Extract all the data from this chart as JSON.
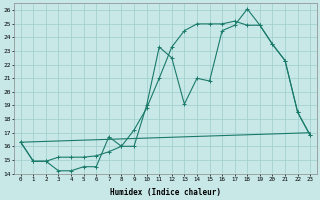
{
  "xlabel": "Humidex (Indice chaleur)",
  "background_color": "#c8e8e8",
  "line_color": "#1a7a6a",
  "xlim": [
    -0.5,
    23.5
  ],
  "ylim": [
    14,
    26.5
  ],
  "yticks": [
    14,
    15,
    16,
    17,
    18,
    19,
    20,
    21,
    22,
    23,
    24,
    25,
    26
  ],
  "xticks": [
    0,
    1,
    2,
    3,
    4,
    5,
    6,
    7,
    8,
    9,
    10,
    11,
    12,
    13,
    14,
    15,
    16,
    17,
    18,
    19,
    20,
    21,
    22,
    23
  ],
  "grid_color": "#9ecece",
  "line1_x": [
    0,
    1,
    2,
    3,
    4,
    5,
    6,
    7,
    8,
    9,
    10,
    11,
    12,
    13,
    14,
    15,
    16,
    17,
    18,
    19,
    20,
    21,
    22,
    23
  ],
  "line1_y": [
    16.3,
    14.9,
    14.9,
    14.2,
    14.2,
    14.5,
    14.5,
    16.7,
    16.0,
    16.0,
    19.0,
    23.3,
    22.5,
    19.1,
    21.0,
    20.8,
    24.5,
    24.9,
    26.1,
    24.9,
    23.5,
    22.3,
    18.5,
    16.8
  ],
  "line2_x": [
    0,
    1,
    2,
    3,
    4,
    5,
    6,
    7,
    8,
    9,
    10,
    11,
    12,
    13,
    14,
    15,
    16,
    17,
    18,
    19,
    20,
    21,
    22,
    23
  ],
  "line2_y": [
    16.3,
    14.9,
    14.9,
    15.2,
    15.2,
    15.2,
    15.3,
    15.6,
    16.0,
    17.2,
    18.8,
    21.0,
    23.3,
    24.5,
    25.0,
    25.0,
    25.0,
    25.2,
    24.9,
    24.9,
    23.5,
    22.3,
    18.5,
    16.8
  ],
  "line3_x": [
    0,
    23
  ],
  "line3_y": [
    16.3,
    17.0
  ]
}
